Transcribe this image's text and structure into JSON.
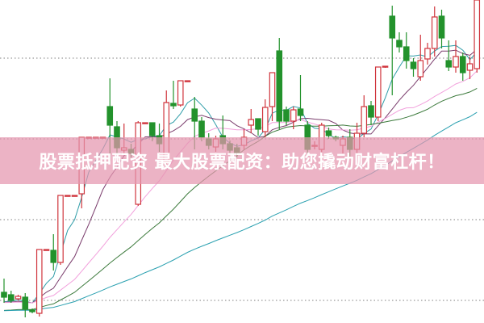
{
  "banner": {
    "text": "股票抵押配资 最大股票配资：助您撬动财富杠杆！"
  },
  "chart_data": {
    "type": "candlestick",
    "title": "",
    "xlabel": "",
    "ylabel": "",
    "ylim": [
      0,
      400
    ],
    "grid": {
      "horizontal": true,
      "style": "dotted",
      "levels": [
        28,
        128,
        228,
        328
      ]
    },
    "colors": {
      "up": "#d0343c",
      "down": "#23922c",
      "grid": "#999999",
      "banner": "#e496ae"
    },
    "moving_averages": [
      {
        "period": 5,
        "color": "#2f9da8"
      },
      {
        "period": 10,
        "color": "#7a3c6c"
      },
      {
        "period": 20,
        "color": "#f2a0dc"
      },
      {
        "period": 30,
        "color": "#3c7a3c"
      },
      {
        "period": 60,
        "color": "#2aa0b0"
      }
    ],
    "ohlc_fields": [
      "open",
      "close",
      "high",
      "low"
    ],
    "candles": [
      [
        38,
        32,
        55,
        25
      ],
      [
        35,
        28,
        40,
        25
      ],
      [
        30,
        33,
        35,
        28
      ],
      [
        32,
        17,
        37,
        7
      ],
      [
        16,
        14,
        18,
        12
      ],
      [
        12,
        91,
        91,
        8
      ],
      [
        91,
        91,
        91,
        91
      ],
      [
        90,
        75,
        110,
        65
      ],
      [
        75,
        158,
        158,
        72
      ],
      [
        158,
        158,
        158,
        158
      ],
      [
        158,
        158,
        158,
        158
      ],
      [
        160,
        230,
        230,
        142
      ],
      [
        230,
        230,
        230,
        230
      ],
      [
        230,
        230,
        230,
        230
      ],
      [
        230,
        230,
        230,
        230
      ],
      [
        268,
        245,
        303,
        200
      ],
      [
        243,
        217,
        250,
        210
      ],
      [
        214,
        217,
        247,
        210
      ],
      [
        215,
        210,
        222,
        205
      ],
      [
        147,
        248,
        250,
        145
      ],
      [
        248,
        248,
        248,
        248
      ],
      [
        248,
        232,
        248,
        225
      ],
      [
        232,
        222,
        247,
        212
      ],
      [
        200,
        273,
        288,
        195
      ],
      [
        272,
        269,
        300,
        265
      ],
      [
        270,
        300,
        300,
        268
      ],
      [
        300,
        300,
        300,
        300
      ],
      [
        265,
        250,
        280,
        215
      ],
      [
        250,
        230,
        255,
        225
      ],
      [
        228,
        220,
        235,
        215
      ],
      [
        218,
        228,
        232,
        212
      ],
      [
        232,
        222,
        257,
        215
      ],
      [
        222,
        214,
        226,
        208
      ],
      [
        217,
        210,
        222,
        205
      ],
      [
        220,
        230,
        240,
        215
      ],
      [
        245,
        252,
        265,
        235
      ],
      [
        253,
        240,
        250,
        232
      ],
      [
        237,
        267,
        277,
        230
      ],
      [
        268,
        310,
        310,
        250
      ],
      [
        337,
        250,
        353,
        240
      ],
      [
        264,
        250,
        268,
        245
      ],
      [
        250,
        264,
        268,
        240
      ],
      [
        265,
        257,
        307,
        250
      ],
      [
        245,
        215,
        250,
        210
      ],
      [
        220,
        220,
        225,
        215
      ],
      [
        215,
        245,
        248,
        210
      ],
      [
        238,
        232,
        242,
        228
      ],
      [
        230,
        228,
        232,
        225
      ],
      [
        220,
        228,
        232,
        210
      ],
      [
        230,
        215,
        240,
        205
      ],
      [
        215,
        235,
        248,
        210
      ],
      [
        235,
        268,
        282,
        230
      ],
      [
        269,
        255,
        275,
        245
      ],
      [
        255,
        317,
        317,
        250
      ],
      [
        317,
        318,
        318,
        316
      ],
      [
        380,
        353,
        393,
        282
      ],
      [
        350,
        342,
        360,
        335
      ],
      [
        342,
        325,
        360,
        315
      ],
      [
        323,
        315,
        328,
        305
      ],
      [
        305,
        325,
        357,
        300
      ],
      [
        327,
        340,
        347,
        320
      ],
      [
        340,
        379,
        392,
        330
      ],
      [
        380,
        353,
        388,
        340
      ],
      [
        325,
        317,
        350,
        312
      ],
      [
        317,
        330,
        350,
        310
      ],
      [
        330,
        310,
        335,
        300
      ],
      [
        313,
        321,
        330,
        302
      ],
      [
        315,
        400,
        400,
        310
      ]
    ]
  }
}
